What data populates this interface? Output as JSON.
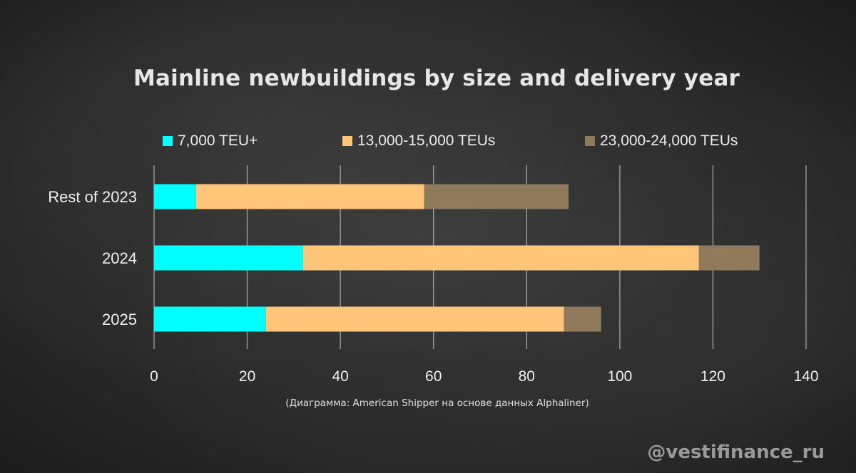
{
  "chart_data": {
    "type": "bar",
    "orientation": "horizontal",
    "stacked": true,
    "title": "Mainline newbuildings by size and delivery year",
    "categories": [
      "Rest of 2023",
      "2024",
      "2025"
    ],
    "series": [
      {
        "name": "7,000 TEU+",
        "color": "#00ffff",
        "values": [
          9,
          32,
          24
        ]
      },
      {
        "name": "13,000-15,000 TEUs",
        "color": "#ffc67a",
        "values": [
          49,
          85,
          64
        ]
      },
      {
        "name": "23,000-24,000 TEUs",
        "color": "#8f7a5c",
        "values": [
          31,
          13,
          8
        ]
      }
    ],
    "xlim": [
      0,
      140
    ],
    "xticks": [
      "0",
      "20",
      "40",
      "60",
      "80",
      "100",
      "120",
      "140"
    ],
    "legend_position": "top",
    "grid": true
  },
  "source_note": "(Диаграмма: American Shipper на основе данных Alphaliner)",
  "watermark": "@vestifinance_ru"
}
